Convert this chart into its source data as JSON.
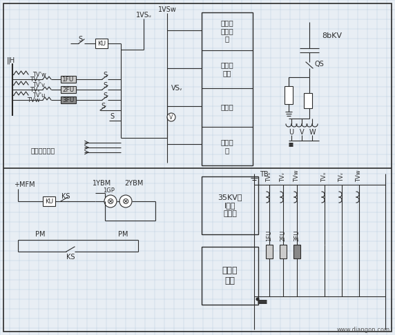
{
  "bg_color": "#e8eef4",
  "line_color": "#2a2a2a",
  "grid_color": "#9ab8d0",
  "watermark": "www.diangon.com",
  "box_top_labels": [
    "绝缘监\n察继电\n器",
    "电压互\n感器",
    "电压表",
    "绝缘检\n查"
  ],
  "box_bottom_1": "35KV第\nI段母\n线接地",
  "box_bottom_2": "掉牌未\n复归"
}
